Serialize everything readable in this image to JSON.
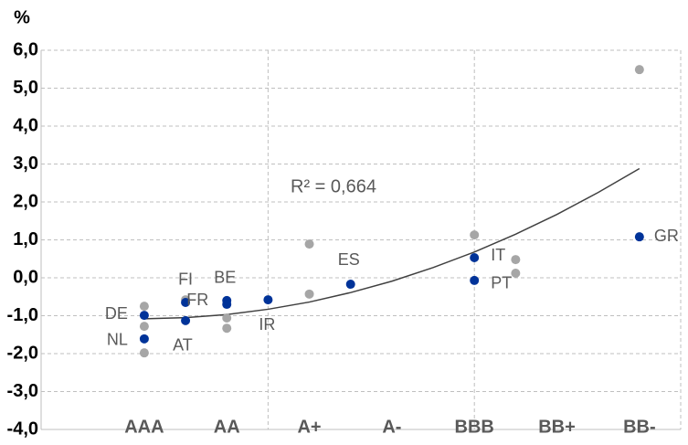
{
  "chart_data": {
    "type": "scatter",
    "y_label": "%",
    "annotation": "R² = 0,664",
    "xlim": [
      -0.25,
      7.5
    ],
    "ylim": [
      -4,
      6
    ],
    "xticks": [
      {
        "value": 1,
        "label": "AAA"
      },
      {
        "value": 2,
        "label": "AA"
      },
      {
        "value": 3,
        "label": "A+"
      },
      {
        "value": 4,
        "label": "A-"
      },
      {
        "value": 5,
        "label": "BBB"
      },
      {
        "value": 6,
        "label": "BB+"
      },
      {
        "value": 7,
        "label": "BB-"
      }
    ],
    "yticks": [
      {
        "value": -4,
        "label": "-4,0"
      },
      {
        "value": -3,
        "label": "-3,0"
      },
      {
        "value": -2,
        "label": "-2,0"
      },
      {
        "value": -1,
        "label": "-1,0"
      },
      {
        "value": 0,
        "label": "0,0"
      },
      {
        "value": 1,
        "label": "1,0"
      },
      {
        "value": 2,
        "label": "2,0"
      },
      {
        "value": 3,
        "label": "3,0"
      },
      {
        "value": 4,
        "label": "4,0"
      },
      {
        "value": 5,
        "label": "5,0"
      },
      {
        "value": 6,
        "label": "6,0"
      }
    ],
    "xgrid": [
      2.5,
      5,
      7.5
    ],
    "grid": true,
    "series": [
      {
        "color": "#a6a6a6",
        "x": [
          1,
          1,
          1,
          1.5,
          2,
          2,
          3,
          3,
          5,
          5.5,
          5.5,
          7
        ],
        "values": [
          -0.75,
          -1.28,
          -1.98,
          -0.58,
          -1.06,
          -1.33,
          0.89,
          -0.43,
          1.13,
          0.48,
          0.12,
          5.49
        ]
      },
      {
        "color": "#003399",
        "x": [
          1,
          1,
          1.5,
          1.5,
          2,
          2,
          2.5,
          3.5,
          5,
          5,
          7
        ],
        "values": [
          -0.99,
          -1.61,
          -0.65,
          -1.13,
          -0.6,
          -0.7,
          -0.58,
          -0.17,
          0.53,
          -0.07,
          1.08
        ],
        "labels": [
          "DE",
          "NL",
          "FI",
          "AT",
          "BE",
          "FR",
          "IR",
          "ES",
          "IT",
          "PT",
          "GR"
        ]
      }
    ],
    "trendline": {
      "color": "#404040",
      "x": [
        1,
        1.5,
        2,
        2.5,
        3,
        3.5,
        4,
        4.5,
        5,
        5.5,
        6,
        6.5,
        7
      ],
      "values": [
        -1.08,
        -1.05,
        -0.97,
        -0.83,
        -0.64,
        -0.39,
        -0.09,
        0.27,
        0.68,
        1.15,
        1.67,
        2.25,
        2.88
      ]
    }
  }
}
